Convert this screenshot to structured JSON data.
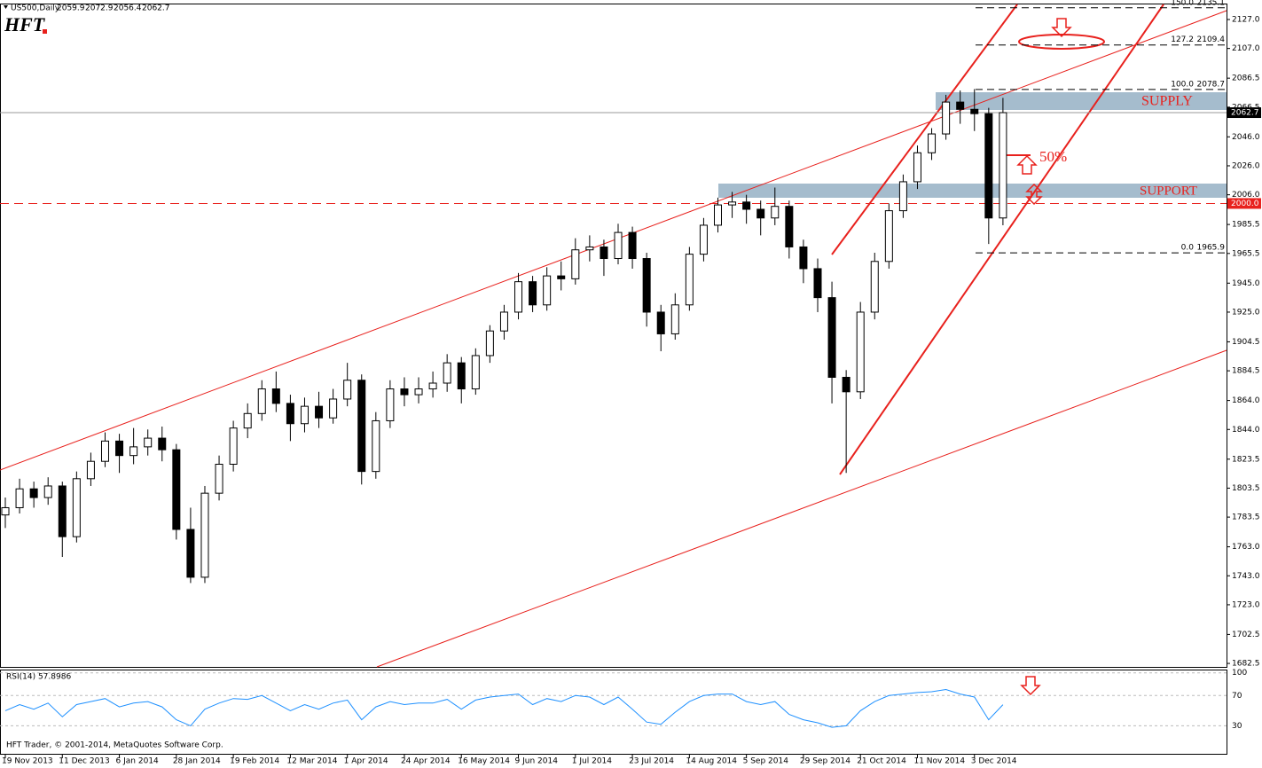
{
  "header": {
    "symbol": "US500,Daily",
    "open": 2059.9,
    "high": 2072.9,
    "low": 2056.4,
    "close": 2062.7,
    "logo": "HFT",
    "copyright": "HFT Trader, © 2001-2014, MetaQuotes Software Corp."
  },
  "annotations": {
    "supply": "SUPPLY",
    "support": "SUPPORT",
    "retrace": "50%"
  },
  "support_level": {
    "value": 2000,
    "label": "2000.0"
  },
  "fibonacci": [
    {
      "ratio": "150.0",
      "price": 2135.1
    },
    {
      "ratio": "127.2",
      "price": 2109.4
    },
    {
      "ratio": "100.0",
      "price": 2078.7
    },
    {
      "ratio": "0.0",
      "price": 1965.9
    }
  ],
  "chart_data": [
    {
      "type": "candlestick",
      "categories": [
        "19 Nov 2013",
        null,
        null,
        null,
        "11 Dec 2013",
        null,
        null,
        null,
        "6 Jan 2014",
        null,
        null,
        null,
        "28 Jan 2014",
        null,
        null,
        null,
        "19 Feb 2014",
        null,
        null,
        null,
        "12 Mar 2014",
        null,
        null,
        null,
        "1 Apr 2014",
        null,
        null,
        null,
        "24 Apr 2014",
        null,
        null,
        null,
        "16 May 2014",
        null,
        null,
        null,
        "9 Jun 2014",
        null,
        null,
        null,
        "1 Jul 2014",
        null,
        null,
        null,
        "23 Jul 2014",
        null,
        null,
        null,
        "14 Aug 2014",
        null,
        null,
        null,
        "5 Sep 2014",
        null,
        null,
        null,
        "29 Sep 2014",
        null,
        null,
        null,
        "21 Oct 2014",
        null,
        null,
        null,
        "11 Nov 2014",
        null,
        null,
        null,
        "3 Dec 2014",
        null,
        null
      ],
      "open": [
        1785,
        1790,
        1803,
        1797,
        1805,
        1770,
        1810,
        1822,
        1836,
        1826,
        1832,
        1838,
        1830,
        1775,
        1742,
        1800,
        1820,
        1845,
        1855,
        1872,
        1862,
        1848,
        1860,
        1852,
        1865,
        1878,
        1815,
        1850,
        1872,
        1868,
        1872,
        1876,
        1890,
        1872,
        1895,
        1912,
        1925,
        1946,
        1930,
        1950,
        1948,
        1968,
        1970,
        1962,
        1980,
        1962,
        1925,
        1910,
        1930,
        1965,
        1985,
        1999,
        2001,
        1996,
        1990,
        1998,
        1970,
        1955,
        1935,
        1880,
        1870,
        1925,
        1960,
        1995,
        2015,
        2035,
        2048,
        2070,
        2065,
        2062,
        1990
      ],
      "high": [
        1797,
        1810,
        1808,
        1811,
        1808,
        1815,
        1828,
        1842,
        1841,
        1845,
        1844,
        1846,
        1834,
        1790,
        1805,
        1826,
        1850,
        1862,
        1878,
        1884,
        1868,
        1866,
        1870,
        1872,
        1890,
        1882,
        1856,
        1878,
        1880,
        1880,
        1884,
        1896,
        1894,
        1900,
        1916,
        1930,
        1952,
        1950,
        1956,
        1960,
        1976,
        1978,
        1975,
        1986,
        1984,
        1966,
        1930,
        1938,
        1970,
        1990,
        2004,
        2008,
        2006,
        2002,
        2011,
        2002,
        1975,
        1962,
        1946,
        1885,
        1932,
        1966,
        2000,
        2020,
        2040,
        2052,
        2075,
        2078,
        2079,
        2066,
        2072.9
      ],
      "low": [
        1776,
        1786,
        1790,
        1792,
        1756,
        1766,
        1805,
        1818,
        1814,
        1820,
        1826,
        1822,
        1768,
        1738,
        1738,
        1795,
        1815,
        1838,
        1850,
        1856,
        1836,
        1842,
        1845,
        1848,
        1860,
        1806,
        1810,
        1845,
        1860,
        1862,
        1866,
        1870,
        1862,
        1868,
        1890,
        1906,
        1920,
        1925,
        1926,
        1940,
        1944,
        1960,
        1950,
        1958,
        1955,
        1915,
        1898,
        1906,
        1926,
        1960,
        1980,
        1990,
        1986,
        1978,
        1985,
        1962,
        1945,
        1925,
        1862,
        1814,
        1865,
        1920,
        1955,
        1990,
        2010,
        2030,
        2044,
        2055,
        2050,
        1972,
        1985
      ],
      "close": [
        1790,
        1803,
        1797,
        1805,
        1770,
        1810,
        1822,
        1836,
        1826,
        1832,
        1838,
        1830,
        1775,
        1742,
        1800,
        1820,
        1845,
        1855,
        1872,
        1862,
        1848,
        1860,
        1852,
        1865,
        1878,
        1815,
        1850,
        1872,
        1868,
        1872,
        1876,
        1890,
        1872,
        1895,
        1912,
        1925,
        1946,
        1930,
        1950,
        1948,
        1968,
        1970,
        1962,
        1980,
        1962,
        1925,
        1910,
        1930,
        1965,
        1985,
        1999,
        2001,
        1996,
        1990,
        1998,
        1970,
        1955,
        1935,
        1880,
        1870,
        1925,
        1960,
        1995,
        2015,
        2035,
        2048,
        2070,
        2065,
        2062,
        1990,
        2062.7
      ],
      "ylim": [
        1680.1,
        2137.4
      ],
      "yticks": [
        {
          "value": 2127,
          "label": "2127.0"
        },
        {
          "value": 2107,
          "label": "2107.0"
        },
        {
          "value": 2086.5,
          "label": "2086.5"
        },
        {
          "value": 2066.5,
          "label": "2066.5"
        },
        {
          "value": 2046,
          "label": "2046.0"
        },
        {
          "value": 2026,
          "label": "2026.0"
        },
        {
          "value": 2006,
          "label": "2006.0"
        },
        {
          "value": 1985.5,
          "label": "1985.5"
        },
        {
          "value": 1965.5,
          "label": "1965.5"
        },
        {
          "value": 1945,
          "label": "1945.0"
        },
        {
          "value": 1925,
          "label": "1925.0"
        },
        {
          "value": 1904.5,
          "label": "1904.5"
        },
        {
          "value": 1884.5,
          "label": "1884.5"
        },
        {
          "value": 1864,
          "label": "1864.0"
        },
        {
          "value": 1844,
          "label": "1844.0"
        },
        {
          "value": 1823.5,
          "label": "1823.5"
        },
        {
          "value": 1803.5,
          "label": "1803.5"
        },
        {
          "value": 1783.5,
          "label": "1783.5"
        },
        {
          "value": 1763,
          "label": "1763.0"
        },
        {
          "value": 1743,
          "label": "1743.0"
        },
        {
          "value": 1723,
          "label": "1723.0"
        },
        {
          "value": 1702.5,
          "label": "1702.5"
        },
        {
          "value": 1682.5,
          "label": "1682.5"
        }
      ]
    },
    {
      "type": "line",
      "title": "RSI(14) 57.8986",
      "color": "#1e90ff",
      "values": [
        50,
        58,
        52,
        60,
        42,
        58,
        62,
        66,
        55,
        60,
        62,
        55,
        38,
        30,
        52,
        60,
        66,
        65,
        70,
        60,
        50,
        58,
        52,
        60,
        64,
        38,
        55,
        62,
        58,
        60,
        60,
        65,
        52,
        64,
        68,
        70,
        72,
        58,
        66,
        62,
        70,
        68,
        58,
        68,
        52,
        35,
        32,
        48,
        62,
        70,
        72,
        72,
        62,
        58,
        62,
        45,
        38,
        34,
        28,
        30,
        50,
        62,
        70,
        72,
        74,
        75,
        78,
        72,
        68,
        38,
        57.9
      ],
      "ylim": [
        -7,
        102
      ],
      "yticks": [
        30,
        70,
        100
      ]
    }
  ]
}
